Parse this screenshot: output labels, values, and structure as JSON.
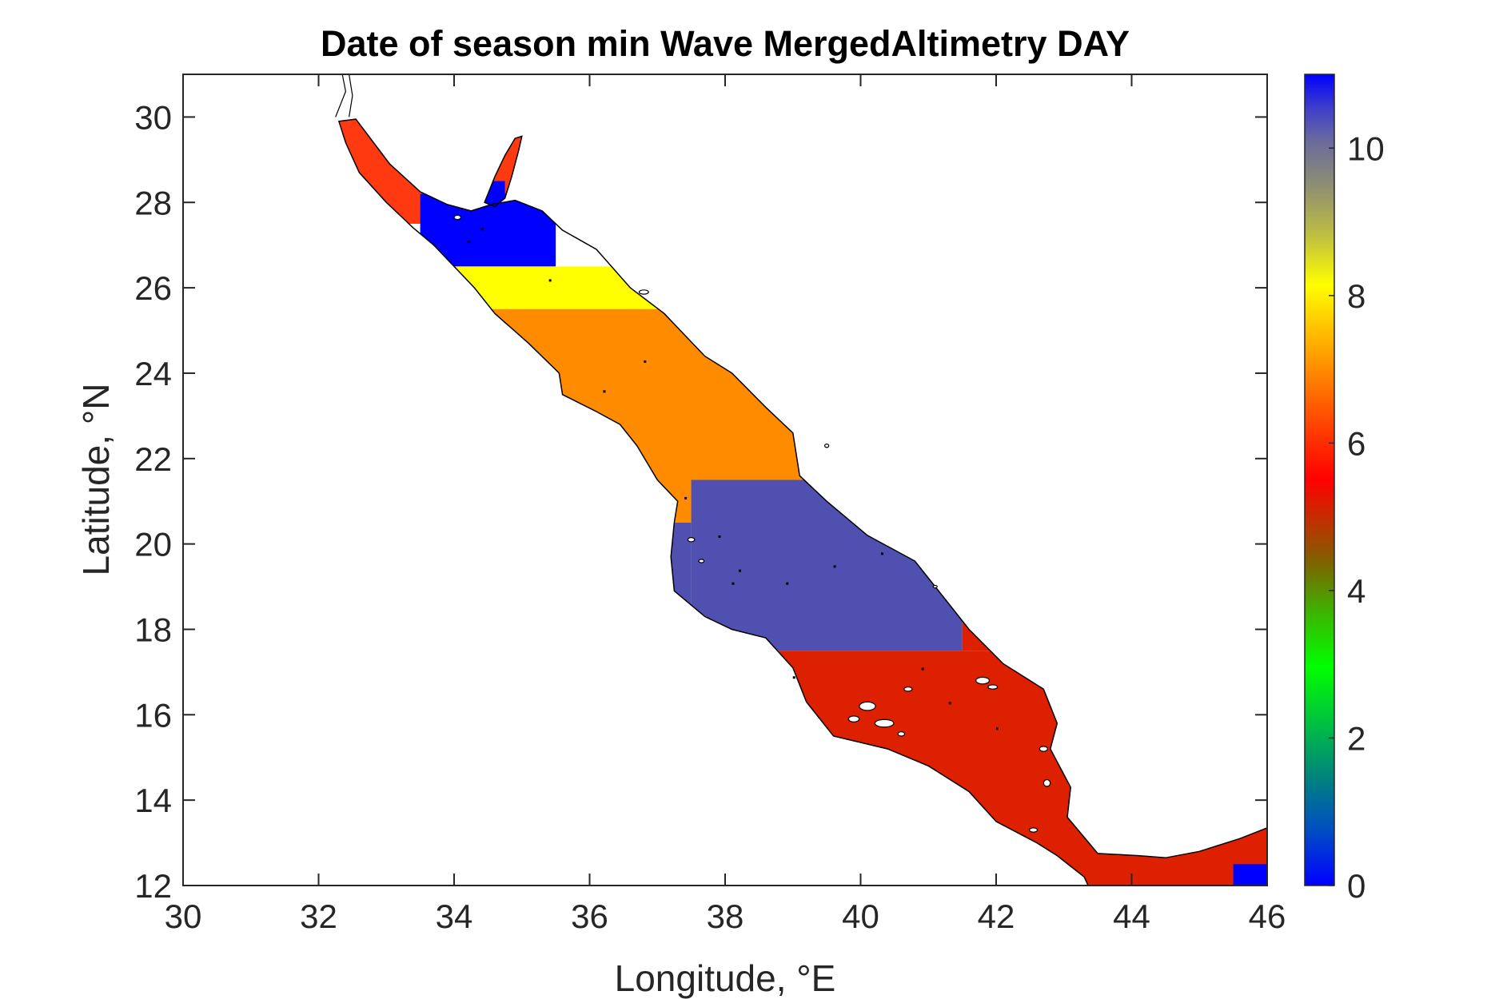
{
  "chart_data": {
    "type": "map",
    "title": "Date of season min Wave MergedAltimetry DAY",
    "xlabel": "Longitude, °E",
    "ylabel": "Latitude, °N",
    "xlim": [
      30,
      46
    ],
    "ylim": [
      12,
      31
    ],
    "xticks": [
      30,
      32,
      34,
      36,
      38,
      40,
      42,
      44,
      46
    ],
    "yticks": [
      12,
      14,
      16,
      18,
      20,
      22,
      24,
      26,
      28,
      30
    ],
    "colorbar": {
      "range": [
        0,
        11
      ],
      "ticks": [
        0,
        2,
        4,
        6,
        8,
        10
      ],
      "colormap": "jet-like",
      "location": "right"
    },
    "regions": [
      {
        "lat": [
          27.5,
          29.6
        ],
        "value": 6.2,
        "color": "#ff3a10"
      },
      {
        "lat": [
          26.5,
          28.2
        ],
        "value": 0.2,
        "color": "#0000ff"
      },
      {
        "lat": [
          25.5,
          26.5
        ],
        "value": 8.0,
        "color": "#ffff00"
      },
      {
        "lat": [
          20.5,
          25.5
        ],
        "value": 7.0,
        "color": "#ff8c00"
      },
      {
        "lat": [
          17.5,
          21.5
        ],
        "value": 10.6,
        "color": "#5050b0"
      },
      {
        "lat": [
          12.0,
          17.5
        ],
        "value": 5.9,
        "color": "#dd2000"
      },
      {
        "lat": [
          12.0,
          12.5
        ],
        "value": 0.2,
        "color": "#0000ff"
      }
    ]
  }
}
